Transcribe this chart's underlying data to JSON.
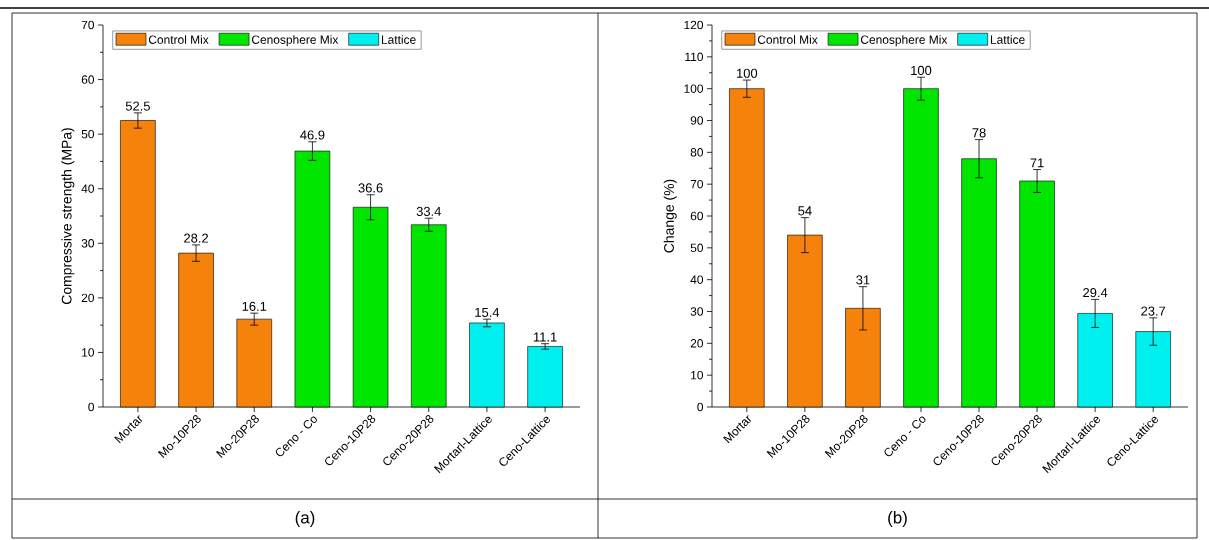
{
  "chart_data": [
    {
      "type": "bar",
      "ylabel": "Compressive strength (MPa)",
      "categories": [
        "Mortar",
        "Mo-10P28",
        "Mo-20P28",
        "Ceno - Co",
        "Ceno-10P28",
        "Ceno-20P28",
        "Mortarl-Lattice",
        "Ceno-Lattice"
      ],
      "series": [
        {
          "name": "Control Mix",
          "color": "#f5820a",
          "values": [
            52.5,
            28.2,
            16.1,
            null,
            null,
            null,
            null,
            null
          ],
          "errors": [
            1.4,
            1.5,
            1.1,
            null,
            null,
            null,
            null,
            null
          ]
        },
        {
          "name": "Cenosphere Mix",
          "color": "#00e600",
          "values": [
            null,
            null,
            null,
            46.9,
            36.6,
            33.4,
            null,
            null
          ],
          "errors": [
            null,
            null,
            null,
            1.7,
            2.3,
            1.2,
            null,
            null
          ]
        },
        {
          "name": "Lattice",
          "color": "#00f0f0",
          "values": [
            null,
            null,
            null,
            null,
            null,
            null,
            15.4,
            11.1
          ],
          "errors": [
            null,
            null,
            null,
            null,
            null,
            null,
            0.7,
            0.5
          ]
        }
      ],
      "ylim": [
        0,
        70
      ],
      "yticks": [
        0,
        10,
        20,
        30,
        40,
        50,
        60,
        70
      ],
      "data_labels": true,
      "legend": "top",
      "annotations": [
        "(a)"
      ]
    },
    {
      "type": "bar",
      "ylabel": "Change (%)",
      "categories": [
        "Mortar",
        "Mo-10P28",
        "Mo-20P28",
        "Ceno - Co",
        "Ceno-10P28",
        "Ceno-20P28",
        "Mortarl-Lattice",
        "Ceno-Lattice"
      ],
      "series": [
        {
          "name": "Control Mix",
          "color": "#f5820a",
          "values": [
            100,
            54,
            31,
            null,
            null,
            null,
            null,
            null
          ],
          "errors": [
            2.7,
            5.5,
            6.8,
            null,
            null,
            null,
            null,
            null
          ]
        },
        {
          "name": "Cenosphere Mix",
          "color": "#00e600",
          "values": [
            null,
            null,
            null,
            100,
            78,
            71,
            null,
            null
          ],
          "errors": [
            null,
            null,
            null,
            3.6,
            6,
            3.6,
            null,
            null
          ]
        },
        {
          "name": "Lattice",
          "color": "#00f0f0",
          "values": [
            null,
            null,
            null,
            null,
            null,
            null,
            29.4,
            23.7
          ],
          "errors": [
            null,
            null,
            null,
            null,
            null,
            null,
            4.4,
            4.3
          ]
        }
      ],
      "ylim": [
        0,
        120
      ],
      "yticks": [
        0,
        10,
        20,
        30,
        40,
        50,
        60,
        70,
        80,
        90,
        100,
        110,
        120
      ],
      "data_labels": true,
      "legend": "top",
      "annotations": [
        "(b)"
      ]
    }
  ]
}
